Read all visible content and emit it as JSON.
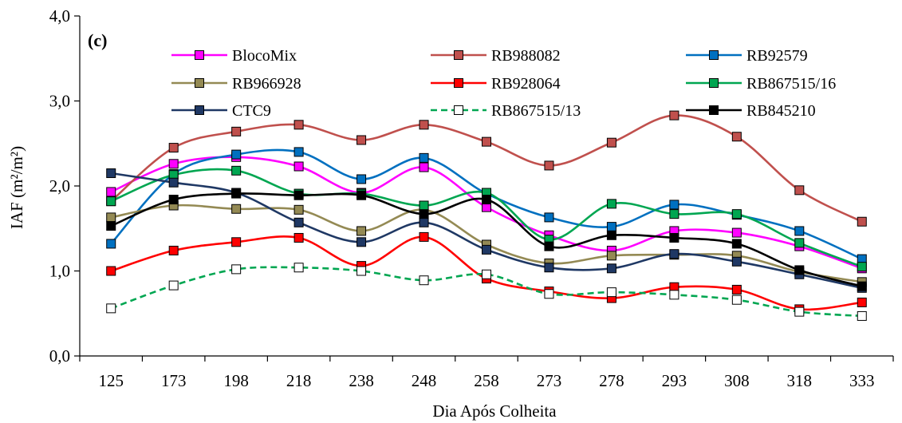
{
  "chart_data": {
    "type": "line",
    "panel_label": "(c)",
    "xlabel": "Dia Após Colheita",
    "ylabel": "IAF (m²/m²)",
    "x": [
      "125",
      "173",
      "198",
      "218",
      "238",
      "248",
      "258",
      "273",
      "278",
      "293",
      "308",
      "318",
      "333"
    ],
    "ylim": [
      0,
      4
    ],
    "yticks": [
      "0,0",
      "1,0",
      "2,0",
      "3,0",
      "4,0"
    ],
    "grid": false,
    "legend_position": "top",
    "series": [
      {
        "name": "BlocoMix",
        "color": "#ff00ff",
        "marker": "#ff00ff",
        "dashed": false,
        "values": [
          1.93,
          2.26,
          2.34,
          2.23,
          1.92,
          2.22,
          1.75,
          1.42,
          1.24,
          1.47,
          1.45,
          1.29,
          1.03
        ]
      },
      {
        "name": "RB988082",
        "color": "#c0504d",
        "marker": "#c0504d",
        "dashed": false,
        "values": [
          1.82,
          2.45,
          2.64,
          2.72,
          2.54,
          2.72,
          2.52,
          2.24,
          2.51,
          2.83,
          2.58,
          1.95,
          1.58
        ]
      },
      {
        "name": "RB92579",
        "color": "#0070c0",
        "marker": "#0070c0",
        "dashed": false,
        "values": [
          1.32,
          2.14,
          2.37,
          2.4,
          2.08,
          2.33,
          1.91,
          1.63,
          1.52,
          1.78,
          1.66,
          1.47,
          1.14
        ]
      },
      {
        "name": "RB966928",
        "color": "#948a54",
        "marker": "#948a54",
        "dashed": false,
        "values": [
          1.63,
          1.77,
          1.73,
          1.72,
          1.47,
          1.72,
          1.31,
          1.09,
          1.18,
          1.19,
          1.18,
          0.99,
          0.87
        ]
      },
      {
        "name": "RB928064",
        "color": "#ff0000",
        "marker": "#ff0000",
        "dashed": false,
        "values": [
          1.0,
          1.24,
          1.34,
          1.39,
          1.06,
          1.4,
          0.91,
          0.76,
          0.68,
          0.81,
          0.78,
          0.55,
          0.63
        ]
      },
      {
        "name": "RB867515/16",
        "color": "#00a651",
        "marker": "#00a651",
        "dashed": false,
        "values": [
          1.82,
          2.13,
          2.18,
          1.91,
          1.91,
          1.77,
          1.92,
          1.37,
          1.79,
          1.67,
          1.67,
          1.33,
          1.05
        ]
      },
      {
        "name": "CTC9",
        "color": "#1f3864",
        "marker": "#1f3864",
        "dashed": false,
        "values": [
          2.15,
          2.04,
          1.92,
          1.57,
          1.34,
          1.57,
          1.25,
          1.04,
          1.03,
          1.2,
          1.11,
          0.96,
          0.8
        ]
      },
      {
        "name": "RB867515/13",
        "color": "#00a651",
        "marker": "#ffffff",
        "dashed": true,
        "values": [
          0.56,
          0.83,
          1.02,
          1.04,
          1.0,
          0.89,
          0.96,
          0.73,
          0.75,
          0.72,
          0.66,
          0.52,
          0.47
        ]
      },
      {
        "name": "RB845210",
        "color": "#000000",
        "marker": "#000000",
        "dashed": false,
        "values": [
          1.53,
          1.84,
          1.91,
          1.89,
          1.89,
          1.67,
          1.84,
          1.29,
          1.42,
          1.39,
          1.32,
          1.01,
          0.82
        ]
      }
    ]
  }
}
